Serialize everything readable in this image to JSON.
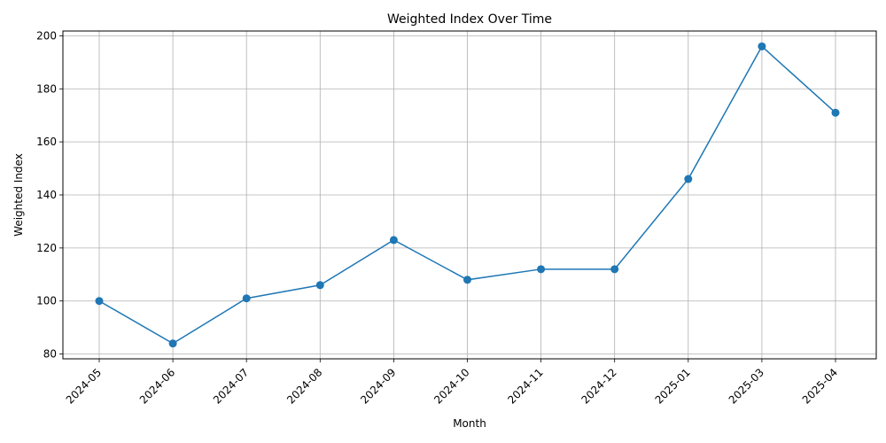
{
  "chart_data": {
    "type": "line",
    "title": "Weighted Index Over Time",
    "xlabel": "Month",
    "ylabel": "Weighted Index",
    "categories": [
      "2024-05",
      "2024-06",
      "2024-07",
      "2024-08",
      "2024-09",
      "2024-10",
      "2024-11",
      "2024-12",
      "2025-01",
      "2025-03",
      "2025-04"
    ],
    "series": [
      {
        "values": [
          100,
          84,
          101,
          106,
          123,
          108,
          112,
          112,
          146,
          196,
          171
        ],
        "color": "#1f77b4"
      }
    ],
    "yticks": [
      80,
      100,
      120,
      140,
      160,
      180,
      200
    ],
    "ylim": [
      78.2,
      201.8
    ],
    "grid": true,
    "marker": "circle"
  }
}
